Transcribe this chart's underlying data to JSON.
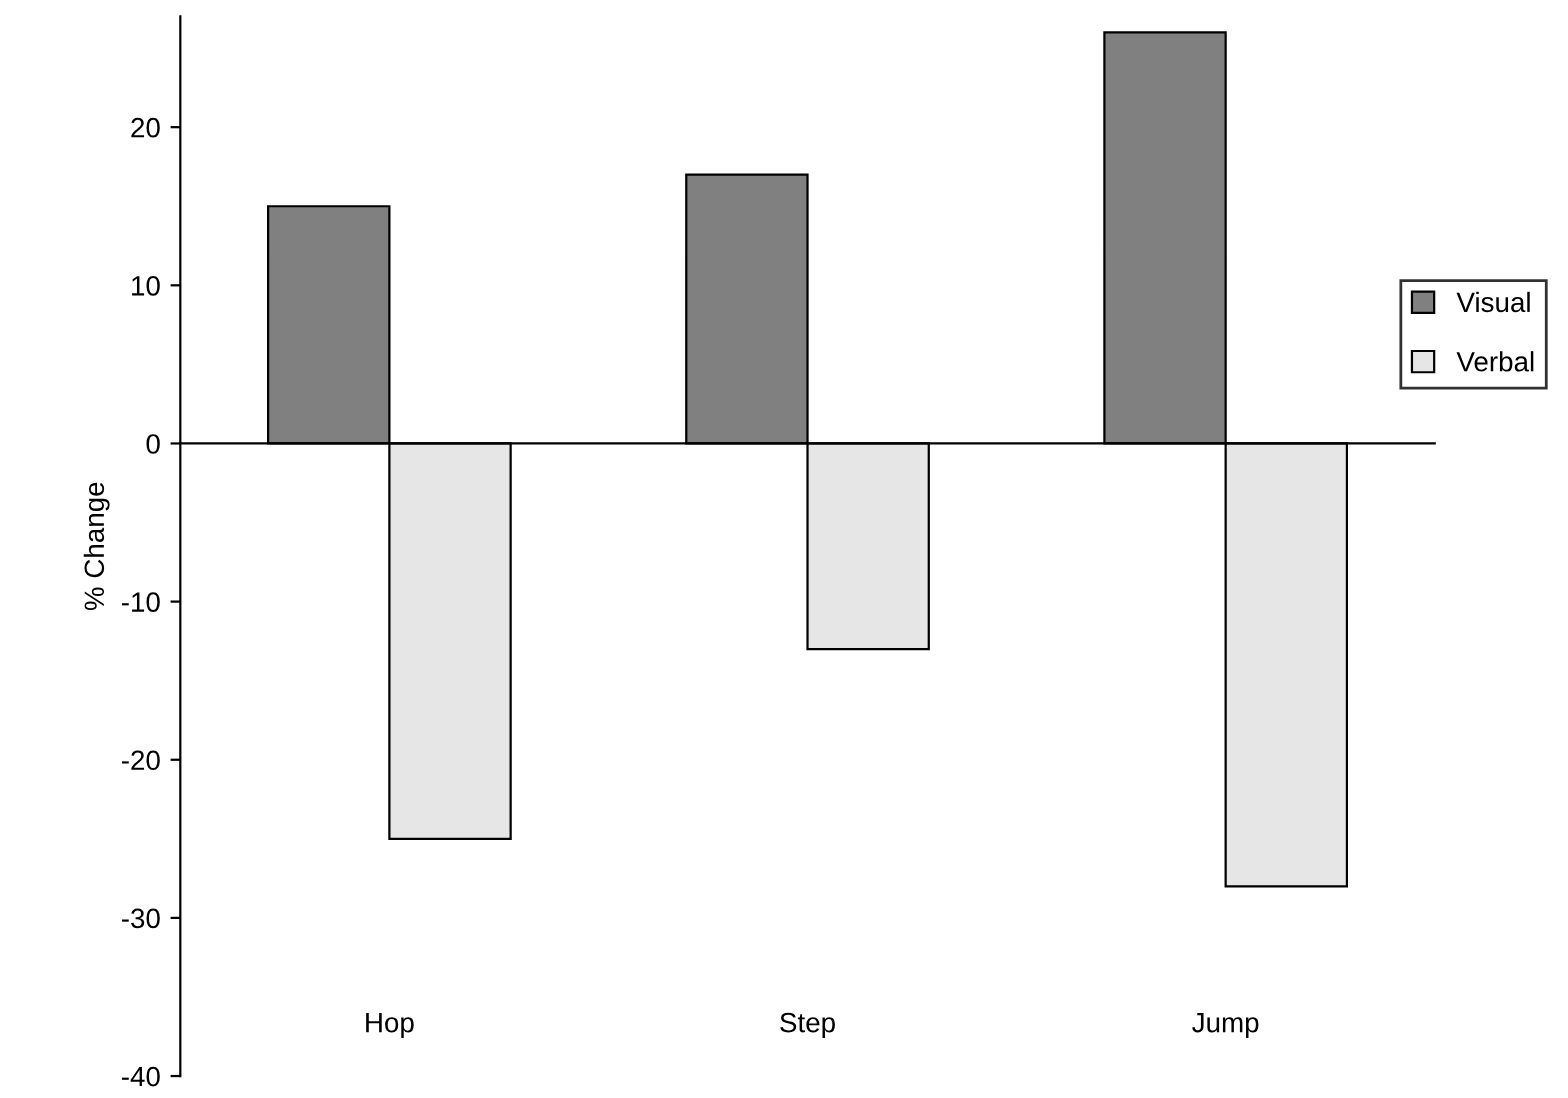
{
  "chart_data": {
    "type": "bar",
    "ylabel": "% Change",
    "categories": [
      "Hop",
      "Step",
      "Jump"
    ],
    "series": [
      {
        "name": "Visual",
        "color": "#808080",
        "values": [
          15,
          17,
          26
        ]
      },
      {
        "name": "Verbal",
        "color": "#e6e6e6",
        "values": [
          -25,
          -13,
          -28
        ]
      }
    ],
    "ylim": [
      -40,
      27
    ],
    "yticks": [
      -40,
      -30,
      -20,
      -10,
      0,
      10,
      20
    ],
    "legend": "right"
  }
}
